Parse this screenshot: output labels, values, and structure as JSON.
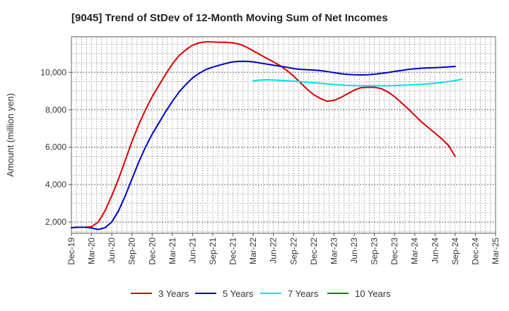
{
  "chart_data": {
    "type": "line",
    "title": "[9045]  Trend of StDev of 12-Month Moving Sum of Net Incomes",
    "xlabel": "",
    "ylabel": "Amount (million yen)",
    "x_ticks": [
      "Dec-19",
      "Mar-20",
      "Jun-20",
      "Sep-20",
      "Dec-20",
      "Mar-21",
      "Jun-21",
      "Sep-21",
      "Dec-21",
      "Mar-22",
      "Jun-22",
      "Sep-22",
      "Dec-22",
      "Mar-23",
      "Jun-23",
      "Sep-23",
      "Dec-23",
      "Mar-24",
      "Jun-24",
      "Sep-24",
      "Dec-24",
      "Mar-25"
    ],
    "y_ticks": [
      2000,
      4000,
      6000,
      8000,
      10000
    ],
    "y_tick_labels": [
      "2,000",
      "4,000",
      "6,000",
      "8,000",
      "10,000"
    ],
    "ylim": [
      1400,
      11900
    ],
    "grid": true,
    "legend_position": "bottom",
    "series": [
      {
        "name": "3 Years",
        "color": "#dd0000",
        "start_index": 0,
        "values": [
          1700,
          1720,
          1720,
          1750,
          2000,
          2600,
          3400,
          4300,
          5300,
          6300,
          7200,
          8000,
          8700,
          9300,
          9900,
          10450,
          10900,
          11200,
          11450,
          11580,
          11630,
          11620,
          11610,
          11600,
          11570,
          11500,
          11350,
          11150,
          10950,
          10750,
          10560,
          10360,
          10100,
          9800,
          9450,
          9100,
          8800,
          8600,
          8450,
          8500,
          8650,
          8850,
          9050,
          9180,
          9200,
          9200,
          9130,
          8950,
          8700,
          8380,
          8050,
          7700,
          7350,
          7050,
          6750,
          6450,
          6100,
          5500
        ]
      },
      {
        "name": "5 Years",
        "color": "#0000cc",
        "start_index": 0,
        "values": [
          1700,
          1720,
          1720,
          1680,
          1600,
          1700,
          2000,
          2600,
          3400,
          4300,
          5200,
          6000,
          6700,
          7300,
          7900,
          8450,
          8950,
          9350,
          9700,
          9950,
          10150,
          10280,
          10380,
          10480,
          10560,
          10590,
          10590,
          10560,
          10500,
          10440,
          10380,
          10330,
          10270,
          10200,
          10160,
          10140,
          10120,
          10090,
          10040,
          9980,
          9930,
          9890,
          9870,
          9860,
          9870,
          9900,
          9940,
          9990,
          10050,
          10100,
          10150,
          10190,
          10220,
          10240,
          10250,
          10270,
          10290,
          10310
        ]
      },
      {
        "name": "7 Years",
        "color": "#00e5e5",
        "start_index": 27,
        "values": [
          9550,
          9580,
          9600,
          9590,
          9570,
          9550,
          9530,
          9500,
          9470,
          9440,
          9410,
          9380,
          9350,
          9320,
          9300,
          9290,
          9280,
          9280,
          9280,
          9280,
          9280,
          9290,
          9300,
          9320,
          9340,
          9360,
          9390,
          9420,
          9460,
          9510,
          9560,
          9630
        ]
      },
      {
        "name": "10 Years",
        "color": "#008800",
        "start_index": 0,
        "values": []
      }
    ]
  }
}
